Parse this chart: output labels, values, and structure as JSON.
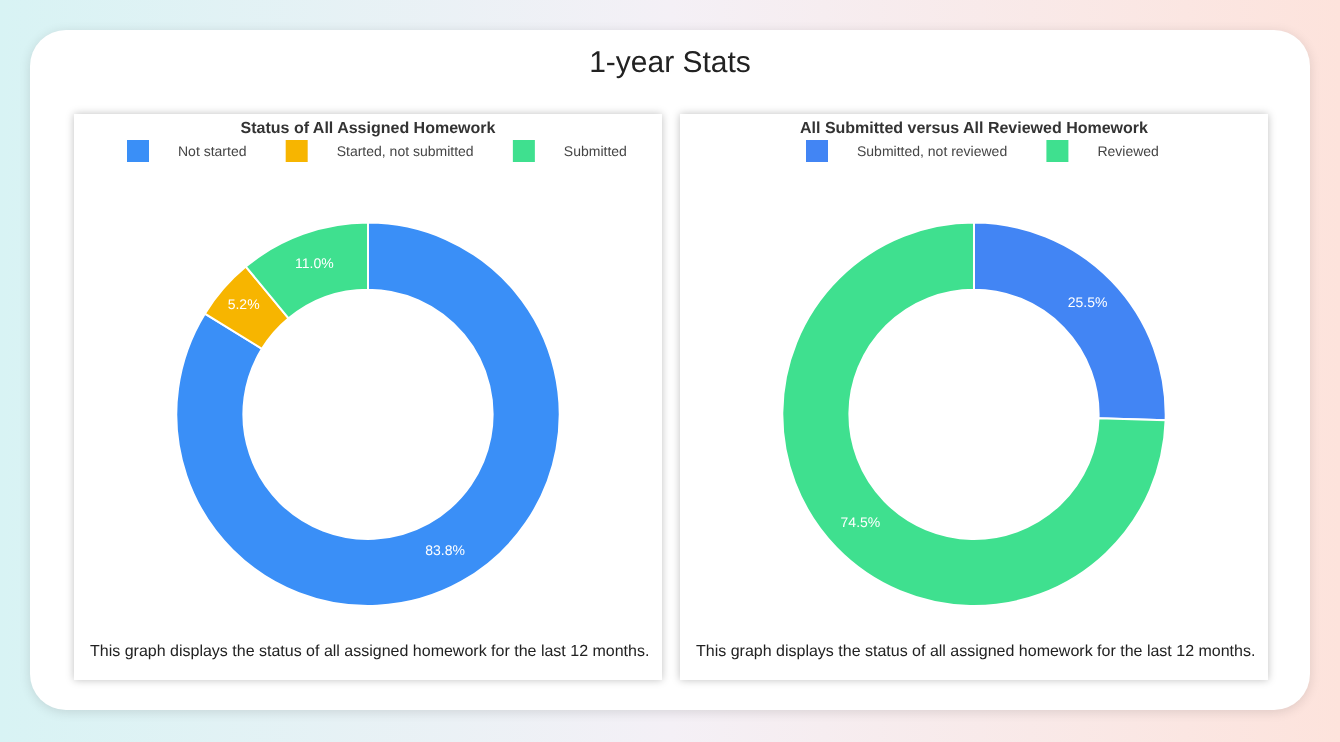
{
  "chart_data": [
    {
      "type": "other",
      "title": "1-year Stats"
    },
    {
      "type": "donut",
      "title": "Status of All Assigned Homework",
      "categories": [
        "Not started",
        "Started, not submitted",
        "Submitted"
      ],
      "values": [
        83.8,
        5.2,
        11.0
      ],
      "colors": [
        "#3a8ff7",
        "#f7b500",
        "#3fe08f"
      ],
      "value_labels": [
        "83.8%",
        "5.2%",
        "11.0%"
      ],
      "legend": "top",
      "annotations": [
        "This graph displays the status of all assigned homework for the last 12 months."
      ]
    },
    {
      "type": "donut",
      "title": "All Submitted versus All Reviewed Homework",
      "categories": [
        "Submitted, not reviewed",
        "Reviewed"
      ],
      "values": [
        25.5,
        74.5
      ],
      "colors": [
        "#4285f4",
        "#3fe08f"
      ],
      "value_labels": [
        "25.5%",
        "74.5%"
      ],
      "legend": "top",
      "annotations": [
        "This graph displays the status of all assigned homework for the last 12 months."
      ]
    }
  ]
}
